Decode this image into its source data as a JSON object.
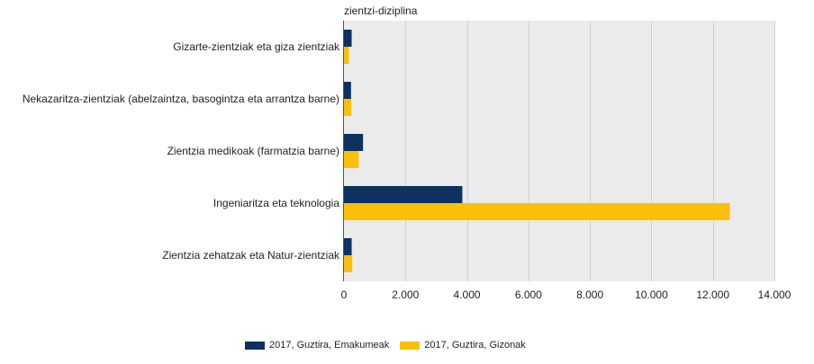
{
  "chart_data": {
    "type": "bar",
    "orientation": "horizontal",
    "title": "zientzi-diziplina",
    "categories": [
      "Gizarte-zientziak eta giza zientziak",
      "Nekazaritza-zientziak (abelzaintza, basogintza eta arrantza barne)",
      "Zientzia medikoak (farmatzia barne)",
      "Ingeniaritza eta teknologia",
      "Zientzia zehatzak eta Natur-zientziak"
    ],
    "series": [
      {
        "name": "2017, Guztira, Emakumeak",
        "color": "#0d3160",
        "values": [
          250,
          230,
          620,
          3850,
          250
        ]
      },
      {
        "name": "2017, Guztira, Gizonak",
        "color": "#fbbf0a",
        "values": [
          160,
          240,
          480,
          12550,
          270
        ]
      }
    ],
    "xlim": [
      0,
      14000
    ],
    "xticks": [
      0,
      2000,
      4000,
      6000,
      8000,
      10000,
      12000,
      14000
    ],
    "xtick_labels": [
      "0",
      "2.000",
      "4.000",
      "6.000",
      "8.000",
      "10.000",
      "12.000",
      "14.000"
    ],
    "grid": true,
    "legend_position": "bottom",
    "plot_background": "#ebebeb"
  }
}
